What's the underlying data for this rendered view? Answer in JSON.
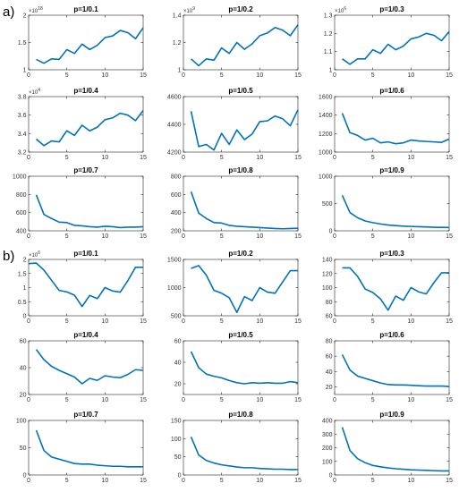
{
  "figure": {
    "panel_labels": [
      "a)",
      "b)"
    ],
    "line_color": "#0072BD",
    "axis_color": "#262626"
  },
  "chart_data": [
    {
      "panel": "a",
      "type": "line",
      "title": "p=1/0.1",
      "x": [
        1,
        2,
        3,
        4,
        5,
        6,
        7,
        8,
        9,
        10,
        11,
        12,
        13,
        14,
        15
      ],
      "values": [
        1.19,
        1.12,
        1.2,
        1.19,
        1.37,
        1.3,
        1.47,
        1.37,
        1.45,
        1.59,
        1.62,
        1.72,
        1.68,
        1.57,
        1.77
      ],
      "ylim": [
        1,
        2
      ],
      "yticks": [
        1,
        1.5,
        2
      ],
      "xticks": [
        0,
        5,
        10,
        15
      ],
      "xlim": [
        0,
        15
      ],
      "exponent": "10^18"
    },
    {
      "panel": "a",
      "type": "line",
      "title": "p=1/0.2",
      "x": [
        1,
        2,
        3,
        4,
        5,
        6,
        7,
        8,
        9,
        10,
        11,
        12,
        13,
        14,
        15
      ],
      "values": [
        1.08,
        1.03,
        1.08,
        1.07,
        1.16,
        1.12,
        1.2,
        1.15,
        1.19,
        1.25,
        1.27,
        1.31,
        1.29,
        1.25,
        1.33
      ],
      "ylim": [
        1,
        1.4
      ],
      "yticks": [
        1,
        1.2,
        1.4
      ],
      "xticks": [
        0,
        5,
        10,
        15
      ],
      "xlim": [
        0,
        15
      ],
      "exponent": "10^9"
    },
    {
      "panel": "a",
      "type": "line",
      "title": "p=1/0.3",
      "x": [
        1,
        2,
        3,
        4,
        5,
        6,
        7,
        8,
        9,
        10,
        11,
        12,
        13,
        14,
        15
      ],
      "values": [
        1.06,
        1.03,
        1.06,
        1.06,
        1.11,
        1.09,
        1.14,
        1.11,
        1.13,
        1.17,
        1.18,
        1.2,
        1.19,
        1.16,
        1.21
      ],
      "ylim": [
        1,
        1.3
      ],
      "yticks": [
        1,
        1.1,
        1.2,
        1.3
      ],
      "xticks": [
        0,
        5,
        10,
        15
      ],
      "xlim": [
        0,
        15
      ],
      "exponent": "10^6"
    },
    {
      "panel": "a",
      "type": "line",
      "title": "p=1/0.4",
      "x": [
        1,
        2,
        3,
        4,
        5,
        6,
        7,
        8,
        9,
        10,
        11,
        12,
        13,
        14,
        15
      ],
      "values": [
        3.34,
        3.27,
        3.32,
        3.31,
        3.43,
        3.38,
        3.49,
        3.43,
        3.47,
        3.55,
        3.57,
        3.62,
        3.6,
        3.54,
        3.65
      ],
      "ylim": [
        3.2,
        3.8
      ],
      "yticks": [
        3.2,
        3.4,
        3.6,
        3.8
      ],
      "xticks": [
        0,
        5,
        10,
        15
      ],
      "xlim": [
        0,
        15
      ],
      "exponent": "10^4"
    },
    {
      "panel": "a",
      "type": "line",
      "title": "p=1/0.5",
      "x": [
        1,
        2,
        3,
        4,
        5,
        6,
        7,
        8,
        9,
        10,
        11,
        12,
        13,
        14,
        15
      ],
      "values": [
        4495,
        4240,
        4255,
        4215,
        4335,
        4255,
        4360,
        4290,
        4330,
        4420,
        4425,
        4460,
        4440,
        4390,
        4505
      ],
      "ylim": [
        4200,
        4600
      ],
      "yticks": [
        4200,
        4400,
        4600
      ],
      "xticks": [
        0,
        5,
        10,
        15
      ],
      "xlim": [
        0,
        15
      ]
    },
    {
      "panel": "a",
      "type": "line",
      "title": "p=1/0.6",
      "x": [
        1,
        2,
        3,
        4,
        5,
        6,
        7,
        8,
        9,
        10,
        11,
        12,
        13,
        14,
        15
      ],
      "values": [
        1420,
        1210,
        1180,
        1130,
        1150,
        1100,
        1110,
        1090,
        1100,
        1130,
        1120,
        1115,
        1110,
        1105,
        1140
      ],
      "ylim": [
        1000,
        1600
      ],
      "yticks": [
        1000,
        1200,
        1400,
        1600
      ],
      "xticks": [
        0,
        5,
        10,
        15
      ],
      "xlim": [
        0,
        15
      ]
    },
    {
      "panel": "a",
      "type": "line",
      "title": "p=1/0.7",
      "x": [
        1,
        2,
        3,
        4,
        5,
        6,
        7,
        8,
        9,
        10,
        11,
        12,
        13,
        14,
        15
      ],
      "values": [
        795,
        580,
        535,
        495,
        490,
        460,
        455,
        445,
        440,
        450,
        445,
        435,
        440,
        440,
        445
      ],
      "ylim": [
        400,
        1000
      ],
      "yticks": [
        400,
        600,
        800,
        1000
      ],
      "xticks": [
        0,
        5,
        10,
        15
      ],
      "xlim": [
        0,
        15
      ]
    },
    {
      "panel": "a",
      "type": "line",
      "title": "p=1/0.8",
      "x": [
        1,
        2,
        3,
        4,
        5,
        6,
        7,
        8,
        9,
        10,
        11,
        12,
        13,
        14,
        15
      ],
      "values": [
        630,
        395,
        335,
        290,
        285,
        260,
        250,
        245,
        240,
        235,
        230,
        225,
        222,
        225,
        228
      ],
      "ylim": [
        200,
        800
      ],
      "yticks": [
        200,
        400,
        600,
        800
      ],
      "xticks": [
        0,
        5,
        10,
        15
      ],
      "xlim": [
        0,
        15
      ]
    },
    {
      "panel": "a",
      "type": "line",
      "title": "p=1/0.9",
      "x": [
        1,
        2,
        3,
        4,
        5,
        6,
        7,
        8,
        9,
        10,
        11,
        12,
        13,
        14,
        15
      ],
      "values": [
        650,
        335,
        240,
        180,
        150,
        125,
        105,
        95,
        85,
        80,
        75,
        70,
        65,
        62,
        60
      ],
      "ylim": [
        0,
        1000
      ],
      "yticks": [
        0,
        500,
        1000
      ],
      "xticks": [
        0,
        5,
        10,
        15
      ],
      "xlim": [
        0,
        15
      ]
    },
    {
      "panel": "b",
      "type": "line",
      "title": "p=1/0.1",
      "x": [
        0,
        1,
        2,
        3,
        4,
        5,
        6,
        7,
        8,
        9,
        10,
        11,
        12,
        13,
        14,
        15
      ],
      "values": [
        1.85,
        1.87,
        1.62,
        1.26,
        0.9,
        0.85,
        0.73,
        0.33,
        0.72,
        0.61,
        1.0,
        0.88,
        0.84,
        1.25,
        1.72,
        1.72
      ],
      "ylim": [
        0,
        2
      ],
      "yticks": [
        0,
        0.5,
        1,
        1.5,
        2
      ],
      "xticks": [
        0,
        5,
        10,
        15
      ],
      "xlim": [
        0,
        15
      ],
      "exponent": "10^6"
    },
    {
      "panel": "b",
      "type": "line",
      "title": "p=1/0.2",
      "x": [
        1,
        2,
        3,
        4,
        5,
        6,
        7,
        8,
        9,
        10,
        11,
        12,
        13,
        14,
        15
      ],
      "values": [
        1340,
        1390,
        1220,
        950,
        900,
        820,
        560,
        840,
        770,
        1000,
        920,
        900,
        1100,
        1300,
        1300
      ],
      "ylim": [
        500,
        1500
      ],
      "yticks": [
        500,
        1000,
        1500
      ],
      "xticks": [
        0,
        5,
        10,
        15
      ],
      "xlim": [
        0,
        15
      ]
    },
    {
      "panel": "b",
      "type": "line",
      "title": "p=1/0.3",
      "x": [
        1,
        2,
        3,
        4,
        5,
        6,
        7,
        8,
        9,
        10,
        11,
        12,
        13,
        14,
        15
      ],
      "values": [
        128,
        128,
        116,
        98,
        93,
        84,
        68,
        88,
        82,
        100,
        94,
        91,
        107,
        121,
        121
      ],
      "ylim": [
        60,
        140
      ],
      "yticks": [
        60,
        80,
        100,
        120,
        140
      ],
      "xticks": [
        0,
        5,
        10,
        15
      ],
      "xlim": [
        0,
        15
      ]
    },
    {
      "panel": "b",
      "type": "line",
      "title": "p=1/0.4",
      "x": [
        1,
        2,
        3,
        4,
        5,
        6,
        7,
        8,
        9,
        10,
        11,
        12,
        13,
        14,
        15
      ],
      "values": [
        53.5,
        46,
        41,
        38,
        35.5,
        33,
        28,
        32,
        30.5,
        34,
        33,
        32.5,
        35,
        38.5,
        38
      ],
      "ylim": [
        20,
        60
      ],
      "yticks": [
        20,
        40,
        60
      ],
      "xticks": [
        0,
        5,
        10,
        15
      ],
      "xlim": [
        0,
        15
      ]
    },
    {
      "panel": "b",
      "type": "line",
      "title": "p=1/0.5",
      "x": [
        1,
        2,
        3,
        4,
        5,
        6,
        7,
        8,
        9,
        10,
        11,
        12,
        13,
        14,
        15
      ],
      "values": [
        50,
        35,
        29,
        27,
        25.5,
        23,
        21,
        20,
        21,
        20.5,
        21,
        20.5,
        20.5,
        22,
        21
      ],
      "ylim": [
        10,
        60
      ],
      "yticks": [
        20,
        40,
        60
      ],
      "xticks": [
        0,
        5,
        10,
        15
      ],
      "xlim": [
        0,
        15
      ]
    },
    {
      "panel": "b",
      "type": "line",
      "title": "p=1/0.6",
      "x": [
        1,
        2,
        3,
        4,
        5,
        6,
        7,
        8,
        9,
        10,
        11,
        12,
        13,
        14,
        15
      ],
      "values": [
        62,
        42,
        34,
        31,
        28,
        25,
        23,
        22.5,
        22.5,
        22,
        21.5,
        21,
        21,
        21,
        20.5
      ],
      "ylim": [
        10,
        80
      ],
      "yticks": [
        20,
        40,
        60,
        80
      ],
      "xticks": [
        0,
        5,
        10,
        15
      ],
      "xlim": [
        0,
        15
      ]
    },
    {
      "panel": "b",
      "type": "line",
      "title": "p=1/0.7",
      "x": [
        1,
        2,
        3,
        4,
        5,
        6,
        7,
        8,
        9,
        10,
        11,
        12,
        13,
        14,
        15
      ],
      "values": [
        82,
        45,
        33,
        29,
        25,
        21,
        20,
        20,
        18,
        17,
        16,
        16,
        15,
        15,
        15
      ],
      "ylim": [
        0,
        100
      ],
      "yticks": [
        0,
        50,
        100
      ],
      "xticks": [
        0,
        5,
        10,
        15
      ],
      "xlim": [
        0,
        15
      ]
    },
    {
      "panel": "b",
      "type": "line",
      "title": "p=1/0.8",
      "x": [
        1,
        2,
        3,
        4,
        5,
        6,
        7,
        8,
        9,
        10,
        11,
        12,
        13,
        14,
        15
      ],
      "values": [
        105,
        55,
        40,
        33,
        28,
        25,
        22,
        20,
        20,
        18,
        17,
        16,
        16,
        15,
        15
      ],
      "ylim": [
        0,
        150
      ],
      "yticks": [
        0,
        50,
        100,
        150
      ],
      "xticks": [
        0,
        5,
        10,
        15
      ],
      "xlim": [
        0,
        15
      ]
    },
    {
      "panel": "b",
      "type": "line",
      "title": "p=1/0.9",
      "x": [
        1,
        2,
        3,
        4,
        5,
        6,
        7,
        8,
        9,
        10,
        11,
        12,
        13,
        14,
        15
      ],
      "values": [
        350,
        180,
        120,
        90,
        70,
        60,
        52,
        46,
        42,
        38,
        36,
        34,
        32,
        30,
        30
      ],
      "ylim": [
        0,
        400
      ],
      "yticks": [
        0,
        100,
        200,
        300,
        400
      ],
      "xticks": [
        0,
        5,
        10,
        15
      ],
      "xlim": [
        0,
        15
      ]
    }
  ]
}
